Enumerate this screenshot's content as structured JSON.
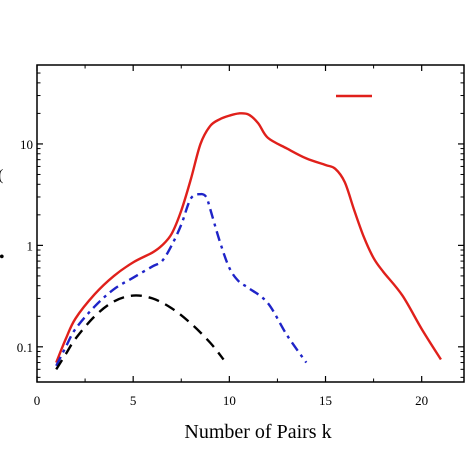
{
  "chart_data": {
    "type": "line",
    "title": "",
    "xlabel": "Number of Pairs k",
    "ylabel": "",
    "yscale": "log",
    "xlim": [
      0,
      22.2
    ],
    "ylim": [
      0.045,
      60
    ],
    "xticks": [
      0,
      5,
      10,
      15,
      20
    ],
    "xtick_labels": [
      "0",
      "5",
      "10",
      "15",
      "20"
    ],
    "yticks": [
      0.1,
      1,
      10
    ],
    "ytick_labels": [
      "0.1",
      "1",
      "10"
    ],
    "grid": false,
    "legend_position": "top-right",
    "series": [
      {
        "color": "#e0201b",
        "dash": "solid",
        "x": [
          1,
          1.5,
          2,
          3,
          4,
          5,
          6,
          6.5,
          7,
          7.5,
          8,
          8.5,
          9,
          9.5,
          10,
          10.5,
          11,
          11.5,
          12,
          13,
          14,
          15,
          15.5,
          16,
          16.5,
          17,
          17.5,
          18,
          19,
          20,
          21
        ],
        "y": [
          0.07,
          0.12,
          0.19,
          0.33,
          0.5,
          0.68,
          0.85,
          1.0,
          1.3,
          2.2,
          4.5,
          10,
          15,
          17.5,
          19,
          20,
          19.5,
          16,
          11.5,
          9,
          7.2,
          6.2,
          5.7,
          4.2,
          2.2,
          1.2,
          0.75,
          0.55,
          0.32,
          0.15,
          0.075
        ]
      },
      {
        "color": "#1f24c8",
        "dash": "dash-dot",
        "x": [
          1,
          1.5,
          2,
          3,
          4,
          5,
          6,
          6.5,
          7,
          7.5,
          8,
          8.5,
          8.8,
          9,
          9.5,
          10,
          10.5,
          11,
          12,
          13,
          14
        ],
        "y": [
          0.065,
          0.1,
          0.15,
          0.25,
          0.37,
          0.48,
          0.62,
          0.7,
          1.0,
          1.6,
          2.9,
          3.2,
          3.0,
          2.3,
          1.1,
          0.6,
          0.44,
          0.38,
          0.27,
          0.13,
          0.07
        ]
      },
      {
        "color": "#000000",
        "dash": "dashed",
        "x": [
          1,
          1.5,
          2,
          3,
          4,
          5,
          6,
          7,
          8,
          9,
          9.7
        ],
        "y": [
          0.06,
          0.085,
          0.12,
          0.2,
          0.28,
          0.32,
          0.3,
          0.24,
          0.17,
          0.11,
          0.075
        ]
      }
    ]
  }
}
